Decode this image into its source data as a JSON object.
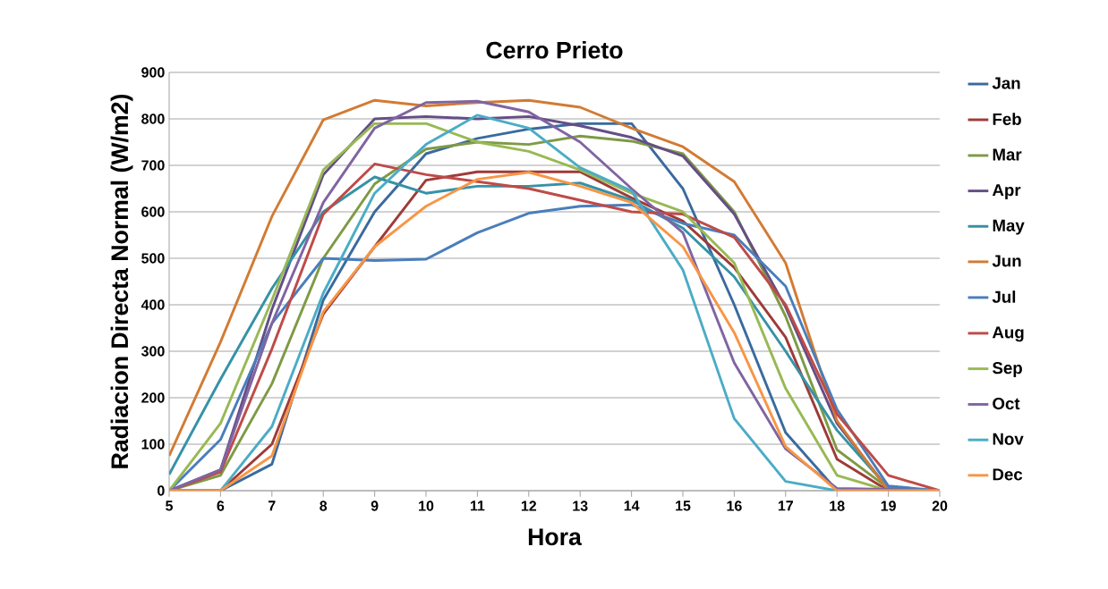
{
  "chart_data": {
    "type": "line",
    "title": "Cerro Prieto",
    "xlabel": "Hora",
    "ylabel": "Radiacion Directa Normal (W/m2)",
    "x": [
      5,
      6,
      7,
      8,
      9,
      10,
      11,
      12,
      13,
      14,
      15,
      16,
      17,
      18,
      19,
      20
    ],
    "xlim": [
      5,
      20
    ],
    "xticks": [
      5,
      6,
      7,
      8,
      9,
      10,
      11,
      12,
      13,
      14,
      15,
      16,
      17,
      18,
      19,
      20
    ],
    "ylim": [
      0,
      900
    ],
    "yticks": [
      0,
      100,
      200,
      300,
      400,
      500,
      600,
      700,
      800,
      900
    ],
    "grid": "y",
    "legend": "right",
    "marker": "none",
    "line_style": "solid",
    "series": [
      {
        "name": "Jan",
        "color": "#3a6a9e",
        "values": [
          0,
          0,
          57,
          410,
          600,
          725,
          758,
          778,
          790,
          790,
          650,
          400,
          125,
          0,
          0,
          0
        ]
      },
      {
        "name": "Feb",
        "color": "#9e3b38",
        "values": [
          0,
          0,
          100,
          380,
          525,
          668,
          686,
          686,
          686,
          630,
          580,
          480,
          330,
          68,
          0,
          0
        ]
      },
      {
        "name": "Mar",
        "color": "#7e9a45",
        "values": [
          0,
          33,
          230,
          500,
          660,
          735,
          750,
          745,
          763,
          752,
          725,
          600,
          375,
          88,
          5,
          0
        ]
      },
      {
        "name": "Apr",
        "color": "#654e86",
        "values": [
          0,
          45,
          390,
          680,
          800,
          805,
          800,
          805,
          785,
          760,
          720,
          595,
          395,
          145,
          3,
          0
        ]
      },
      {
        "name": "May",
        "color": "#3592a6",
        "values": [
          35,
          240,
          435,
          600,
          675,
          640,
          655,
          655,
          662,
          625,
          565,
          460,
          300,
          130,
          5,
          0
        ]
      },
      {
        "name": "Jun",
        "color": "#d27b33",
        "values": [
          75,
          320,
          590,
          798,
          840,
          828,
          835,
          840,
          825,
          780,
          740,
          665,
          490,
          150,
          0,
          0
        ]
      },
      {
        "name": "Jul",
        "color": "#4a7ebb",
        "values": [
          0,
          110,
          360,
          500,
          495,
          498,
          555,
          597,
          612,
          615,
          575,
          550,
          440,
          175,
          10,
          0
        ]
      },
      {
        "name": "Aug",
        "color": "#be4b48",
        "values": [
          0,
          40,
          305,
          595,
          703,
          680,
          665,
          650,
          625,
          600,
          595,
          545,
          400,
          165,
          33,
          0
        ]
      },
      {
        "name": "Sep",
        "color": "#98b954",
        "values": [
          0,
          145,
          410,
          690,
          790,
          790,
          750,
          730,
          690,
          640,
          600,
          490,
          220,
          33,
          0,
          0
        ]
      },
      {
        "name": "Oct",
        "color": "#8064a2",
        "values": [
          0,
          45,
          360,
          620,
          780,
          835,
          838,
          815,
          750,
          650,
          555,
          275,
          90,
          5,
          3,
          0
        ]
      },
      {
        "name": "Nov",
        "color": "#4bacc6",
        "values": [
          0,
          0,
          138,
          425,
          640,
          745,
          808,
          780,
          695,
          645,
          475,
          155,
          20,
          0,
          0,
          0
        ]
      },
      {
        "name": "Dec",
        "color": "#f79646",
        "values": [
          0,
          0,
          75,
          385,
          525,
          612,
          670,
          685,
          655,
          620,
          525,
          340,
          95,
          0,
          0,
          0
        ]
      }
    ]
  }
}
